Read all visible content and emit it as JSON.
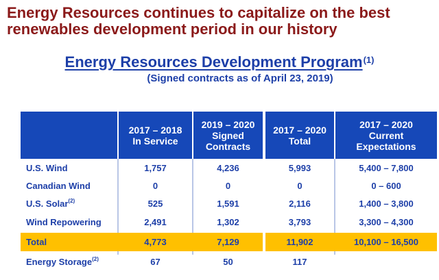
{
  "headline": "Energy Resources continues to capitalize on the best renewables development period in our history",
  "program": {
    "title": "Energy Resources Development Program",
    "title_sup": "(1)",
    "subtitle": "(Signed contracts as of April 23, 2019)"
  },
  "table": {
    "headers": [
      "2017 – 2018\nIn Service",
      "2019 – 2020\nSigned\nContracts",
      "2017 – 2020\nTotal",
      "2017 – 2020\nCurrent\nExpectations"
    ],
    "rows": [
      {
        "label": "U.S. Wind",
        "sup": "",
        "values": [
          "1,757",
          "4,236",
          "5,993",
          "5,400 – 7,800"
        ]
      },
      {
        "label": "Canadian Wind",
        "sup": "",
        "values": [
          "0",
          "0",
          "0",
          "0 – 600"
        ]
      },
      {
        "label": "U.S. Solar",
        "sup": "(2)",
        "values": [
          "525",
          "1,591",
          "2,116",
          "1,400 – 3,800"
        ]
      },
      {
        "label": "Wind Repowering",
        "sup": "",
        "values": [
          "2,491",
          "1,302",
          "3,793",
          "3,300 – 4,300"
        ]
      },
      {
        "label": "Total",
        "sup": "",
        "values": [
          "4,773",
          "7,129",
          "11,902",
          "10,100 – 16,500"
        ]
      },
      {
        "label": "Energy Storage",
        "sup": "(2)",
        "values": [
          "67",
          "50",
          "117",
          ""
        ]
      }
    ]
  },
  "colors": {
    "headline": "#8b1a1a",
    "accent_blue": "#1648b8",
    "text_blue": "#1d3fa8",
    "total_highlight": "#ffc000"
  }
}
